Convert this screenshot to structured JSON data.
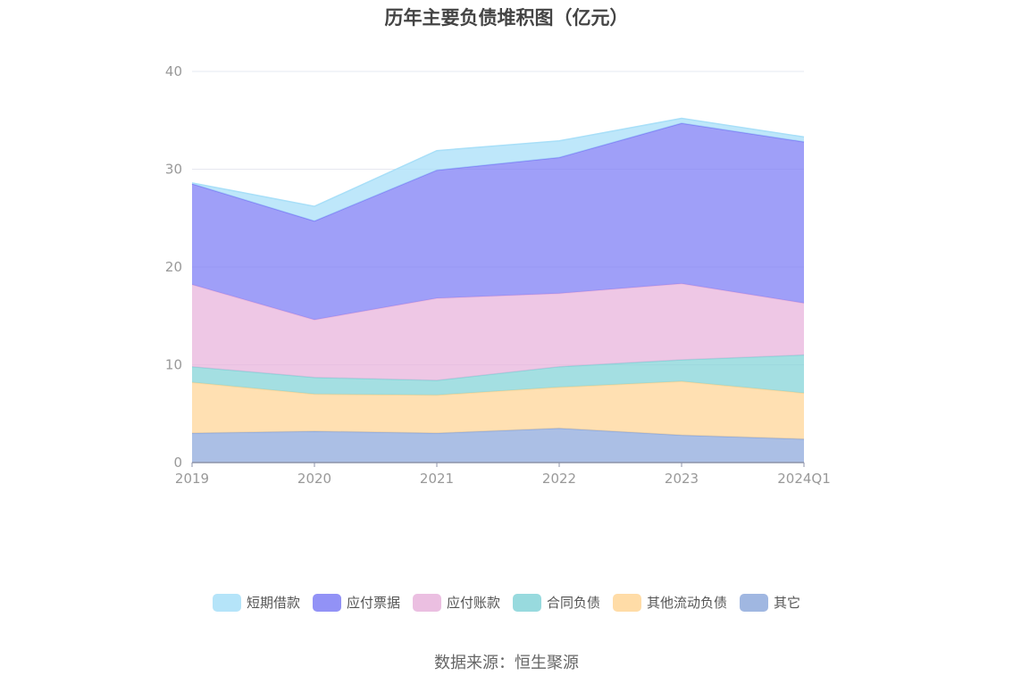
{
  "chart_data": {
    "type": "area",
    "stacked": true,
    "title": "历年主要负债堆积图（亿元）",
    "categories": [
      "2019",
      "2020",
      "2021",
      "2022",
      "2023",
      "2024Q1"
    ],
    "y_ticks": [
      "0",
      "10",
      "20",
      "30",
      "40"
    ],
    "ylim": [
      0,
      40
    ],
    "grid": true,
    "legend_position": "bottom",
    "series": [
      {
        "name": "其它",
        "color": "#8FAADC",
        "values": [
          3.0,
          3.2,
          3.0,
          3.5,
          2.8,
          2.4
        ]
      },
      {
        "name": "其他流动负债",
        "color": "#FFD698",
        "values": [
          5.2,
          3.8,
          3.9,
          4.2,
          5.5,
          4.7
        ]
      },
      {
        "name": "合同负债",
        "color": "#86D4D8",
        "values": [
          1.6,
          1.7,
          1.5,
          2.1,
          2.2,
          3.9
        ]
      },
      {
        "name": "应付账款",
        "color": "#E8B4DC",
        "values": [
          8.4,
          5.9,
          8.4,
          7.5,
          7.8,
          5.3
        ]
      },
      {
        "name": "应付票据",
        "color": "#7F7FF5",
        "values": [
          10.3,
          10.1,
          13.1,
          13.9,
          16.4,
          16.5
        ]
      },
      {
        "name": "短期借款",
        "color": "#A8DFF8",
        "values": [
          0.1,
          1.5,
          2.0,
          1.7,
          0.5,
          0.5
        ]
      }
    ]
  },
  "legend_order": [
    "短期借款",
    "应付票据",
    "应付账款",
    "合同负债",
    "其他流动负债",
    "其它"
  ],
  "source": "数据来源：恒生聚源"
}
